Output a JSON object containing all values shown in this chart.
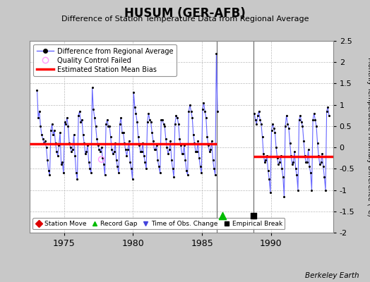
{
  "title": "HUSUM (GER-AFB)",
  "subtitle": "Difference of Station Temperature Data from Regional Average",
  "ylabel": "Monthly Temperature Anomaly Difference (°C)",
  "credit": "Berkeley Earth",
  "xlim": [
    1972.5,
    1994.5
  ],
  "ylim": [
    -2.0,
    2.5
  ],
  "yticks": [
    -2.0,
    -1.5,
    -1.0,
    -0.5,
    0.0,
    0.5,
    1.0,
    1.5,
    2.0,
    2.5
  ],
  "xticks": [
    1975,
    1980,
    1985,
    1990
  ],
  "bg_color": "#c8c8c8",
  "plot_bg_color": "#ffffff",
  "bias_segments": [
    {
      "x_start": 1972.5,
      "x_end": 1986.08,
      "bias": 0.08
    },
    {
      "x_start": 1988.75,
      "x_end": 1994.5,
      "bias": -0.22
    }
  ],
  "vertical_lines": [
    1986.08,
    1988.75
  ],
  "record_gap_x": 1986.5,
  "record_gap_y": -1.6,
  "empirical_break_x": 1988.75,
  "empirical_break_y": -1.6,
  "data": [
    [
      1973.0417,
      1.35
    ],
    [
      1973.125,
      0.7
    ],
    [
      1973.2083,
      0.85
    ],
    [
      1973.2917,
      0.5
    ],
    [
      1973.375,
      0.3
    ],
    [
      1973.4583,
      0.2
    ],
    [
      1973.5417,
      0.1
    ],
    [
      1973.625,
      0.15
    ],
    [
      1973.7083,
      0.0
    ],
    [
      1973.7917,
      -0.3
    ],
    [
      1973.875,
      -0.55
    ],
    [
      1973.9583,
      -0.65
    ],
    [
      1974.0417,
      0.4
    ],
    [
      1974.125,
      0.55
    ],
    [
      1974.2083,
      0.3
    ],
    [
      1974.2917,
      0.4
    ],
    [
      1974.375,
      0.1
    ],
    [
      1974.4583,
      -0.1
    ],
    [
      1974.5417,
      -0.2
    ],
    [
      1974.625,
      0.05
    ],
    [
      1974.7083,
      0.35
    ],
    [
      1974.7917,
      -0.4
    ],
    [
      1974.875,
      -0.35
    ],
    [
      1974.9583,
      -0.6
    ],
    [
      1975.0417,
      0.6
    ],
    [
      1975.125,
      0.55
    ],
    [
      1975.2083,
      0.7
    ],
    [
      1975.2917,
      0.5
    ],
    [
      1975.375,
      0.1
    ],
    [
      1975.4583,
      0.0
    ],
    [
      1975.5417,
      -0.1
    ],
    [
      1975.625,
      -0.05
    ],
    [
      1975.7083,
      0.3
    ],
    [
      1975.7917,
      -0.2
    ],
    [
      1975.875,
      -0.6
    ],
    [
      1975.9583,
      -0.75
    ],
    [
      1976.0417,
      0.75
    ],
    [
      1976.125,
      0.85
    ],
    [
      1976.2083,
      0.6
    ],
    [
      1976.2917,
      0.65
    ],
    [
      1976.375,
      0.3
    ],
    [
      1976.4583,
      0.1
    ],
    [
      1976.5417,
      -0.15
    ],
    [
      1976.625,
      -0.1
    ],
    [
      1976.7083,
      0.05
    ],
    [
      1976.7917,
      -0.35
    ],
    [
      1976.875,
      -0.5
    ],
    [
      1976.9583,
      -0.6
    ],
    [
      1977.0417,
      1.4
    ],
    [
      1977.125,
      0.9
    ],
    [
      1977.2083,
      0.7
    ],
    [
      1977.2917,
      0.5
    ],
    [
      1977.375,
      0.2
    ],
    [
      1977.4583,
      0.05
    ],
    [
      1977.5417,
      -0.05
    ],
    [
      1977.625,
      -0.1
    ],
    [
      1977.7083,
      0.0
    ],
    [
      1977.7917,
      -0.25
    ],
    [
      1977.875,
      -0.4
    ],
    [
      1977.9583,
      -0.65
    ],
    [
      1978.0417,
      0.55
    ],
    [
      1978.125,
      0.65
    ],
    [
      1978.2083,
      0.5
    ],
    [
      1978.2917,
      0.5
    ],
    [
      1978.375,
      0.25
    ],
    [
      1978.4583,
      -0.05
    ],
    [
      1978.5417,
      -0.15
    ],
    [
      1978.625,
      -0.1
    ],
    [
      1978.7083,
      0.1
    ],
    [
      1978.7917,
      -0.3
    ],
    [
      1978.875,
      -0.45
    ],
    [
      1978.9583,
      -0.6
    ],
    [
      1979.0417,
      0.55
    ],
    [
      1979.125,
      0.7
    ],
    [
      1979.2083,
      0.35
    ],
    [
      1979.2917,
      0.35
    ],
    [
      1979.375,
      0.1
    ],
    [
      1979.4583,
      -0.05
    ],
    [
      1979.5417,
      -0.2
    ],
    [
      1979.625,
      -0.05
    ],
    [
      1979.7083,
      0.15
    ],
    [
      1979.7917,
      -0.35
    ],
    [
      1979.875,
      -0.5
    ],
    [
      1979.9583,
      -0.75
    ],
    [
      1980.0417,
      1.3
    ],
    [
      1980.125,
      0.95
    ],
    [
      1980.2083,
      0.8
    ],
    [
      1980.2917,
      0.6
    ],
    [
      1980.375,
      0.25
    ],
    [
      1980.4583,
      0.05
    ],
    [
      1980.5417,
      -0.1
    ],
    [
      1980.625,
      -0.1
    ],
    [
      1980.7083,
      0.1
    ],
    [
      1980.7917,
      -0.2
    ],
    [
      1980.875,
      -0.35
    ],
    [
      1980.9583,
      -0.5
    ],
    [
      1981.0417,
      0.6
    ],
    [
      1981.125,
      0.8
    ],
    [
      1981.2083,
      0.65
    ],
    [
      1981.2917,
      0.6
    ],
    [
      1981.375,
      0.35
    ],
    [
      1981.4583,
      0.15
    ],
    [
      1981.5417,
      -0.05
    ],
    [
      1981.625,
      -0.05
    ],
    [
      1981.7083,
      0.05
    ],
    [
      1981.7917,
      -0.3
    ],
    [
      1981.875,
      -0.45
    ],
    [
      1981.9583,
      -0.6
    ],
    [
      1982.0417,
      0.65
    ],
    [
      1982.125,
      0.65
    ],
    [
      1982.2083,
      0.55
    ],
    [
      1982.2917,
      0.5
    ],
    [
      1982.375,
      0.2
    ],
    [
      1982.4583,
      0.0
    ],
    [
      1982.5417,
      -0.15
    ],
    [
      1982.625,
      -0.05
    ],
    [
      1982.7083,
      0.15
    ],
    [
      1982.7917,
      -0.3
    ],
    [
      1982.875,
      -0.5
    ],
    [
      1982.9583,
      -0.7
    ],
    [
      1983.0417,
      0.55
    ],
    [
      1983.125,
      0.75
    ],
    [
      1983.2083,
      0.7
    ],
    [
      1983.2917,
      0.55
    ],
    [
      1983.375,
      0.2
    ],
    [
      1983.4583,
      0.05
    ],
    [
      1983.5417,
      -0.15
    ],
    [
      1983.625,
      -0.15
    ],
    [
      1983.7083,
      0.05
    ],
    [
      1983.7917,
      -0.3
    ],
    [
      1983.875,
      -0.55
    ],
    [
      1983.9583,
      -0.65
    ],
    [
      1984.0417,
      0.85
    ],
    [
      1984.125,
      1.0
    ],
    [
      1984.2083,
      0.85
    ],
    [
      1984.2917,
      0.7
    ],
    [
      1984.375,
      0.3
    ],
    [
      1984.4583,
      0.1
    ],
    [
      1984.5417,
      -0.1
    ],
    [
      1984.625,
      -0.1
    ],
    [
      1984.7083,
      0.15
    ],
    [
      1984.7917,
      -0.25
    ],
    [
      1984.875,
      -0.45
    ],
    [
      1984.9583,
      -0.6
    ],
    [
      1985.0417,
      0.9
    ],
    [
      1985.125,
      1.05
    ],
    [
      1985.2083,
      0.85
    ],
    [
      1985.2917,
      0.7
    ],
    [
      1985.375,
      0.25
    ],
    [
      1985.4583,
      0.05
    ],
    [
      1985.5417,
      -0.1
    ],
    [
      1985.625,
      -0.05
    ],
    [
      1985.7083,
      0.15
    ],
    [
      1985.7917,
      -0.3
    ],
    [
      1985.875,
      -0.5
    ],
    [
      1985.9583,
      -0.65
    ],
    [
      1986.0417,
      2.2
    ],
    [
      1986.125,
      0.85
    ],
    [
      1988.7917,
      0.8
    ],
    [
      1988.875,
      0.65
    ],
    [
      1988.9583,
      0.55
    ],
    [
      1989.0417,
      0.75
    ],
    [
      1989.125,
      0.85
    ],
    [
      1989.2083,
      0.65
    ],
    [
      1989.2917,
      0.55
    ],
    [
      1989.375,
      0.25
    ],
    [
      1989.4583,
      -0.15
    ],
    [
      1989.5417,
      -0.35
    ],
    [
      1989.625,
      -0.3
    ],
    [
      1989.7083,
      -0.2
    ],
    [
      1989.7917,
      -0.55
    ],
    [
      1989.875,
      -0.75
    ],
    [
      1989.9583,
      -1.05
    ],
    [
      1990.0417,
      0.4
    ],
    [
      1990.125,
      0.55
    ],
    [
      1990.2083,
      0.45
    ],
    [
      1990.2917,
      0.35
    ],
    [
      1990.375,
      0.0
    ],
    [
      1990.4583,
      -0.25
    ],
    [
      1990.5417,
      -0.4
    ],
    [
      1990.625,
      -0.35
    ],
    [
      1990.7083,
      -0.2
    ],
    [
      1990.7917,
      -0.5
    ],
    [
      1990.875,
      -0.7
    ],
    [
      1990.9583,
      -1.15
    ],
    [
      1991.0417,
      0.5
    ],
    [
      1991.125,
      0.75
    ],
    [
      1991.2083,
      0.55
    ],
    [
      1991.2917,
      0.45
    ],
    [
      1991.375,
      0.1
    ],
    [
      1991.4583,
      -0.2
    ],
    [
      1991.5417,
      -0.4
    ],
    [
      1991.625,
      -0.35
    ],
    [
      1991.7083,
      -0.1
    ],
    [
      1991.7917,
      -0.5
    ],
    [
      1991.875,
      -0.65
    ],
    [
      1991.9583,
      -1.0
    ],
    [
      1992.0417,
      0.65
    ],
    [
      1992.125,
      0.75
    ],
    [
      1992.2083,
      0.6
    ],
    [
      1992.2917,
      0.5
    ],
    [
      1992.375,
      0.15
    ],
    [
      1992.4583,
      -0.2
    ],
    [
      1992.5417,
      -0.35
    ],
    [
      1992.625,
      -0.35
    ],
    [
      1992.7083,
      -0.05
    ],
    [
      1992.7917,
      -0.45
    ],
    [
      1992.875,
      -0.6
    ],
    [
      1992.9583,
      -1.0
    ],
    [
      1993.0417,
      0.65
    ],
    [
      1993.125,
      0.8
    ],
    [
      1993.2083,
      0.65
    ],
    [
      1993.2917,
      0.5
    ],
    [
      1993.375,
      0.1
    ],
    [
      1993.4583,
      -0.2
    ],
    [
      1993.5417,
      -0.4
    ],
    [
      1993.625,
      -0.35
    ],
    [
      1993.7083,
      -0.15
    ],
    [
      1993.7917,
      -0.45
    ],
    [
      1993.875,
      -0.7
    ],
    [
      1993.9583,
      -1.0
    ],
    [
      1994.0417,
      0.85
    ],
    [
      1994.125,
      0.95
    ],
    [
      1994.2083,
      0.75
    ]
  ],
  "qc_failed": [
    [
      1977.7083,
      -0.28
    ]
  ],
  "line_color": "#6666ff",
  "dot_color": "#000000",
  "bias_color": "#ff0000",
  "vline_color": "#666666"
}
